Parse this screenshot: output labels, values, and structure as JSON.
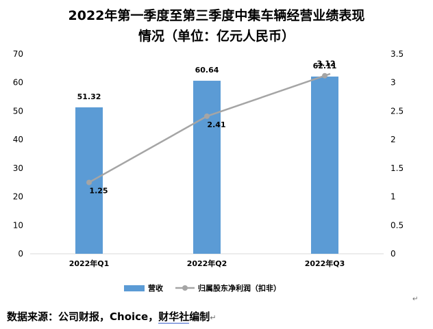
{
  "title_line_1": "2022年第一季度至第三季度中集车辆经营业绩表现",
  "title_line_2": "情况（单位：亿元人民币）",
  "source_text": "数据来源：公司财报，Choice，",
  "source_brand": "财华社",
  "source_suffix": "编制",
  "para_mark": "↵",
  "chart_data": {
    "type": "bar+line",
    "title": "2022年第一季度至第三季度中集车辆经营业绩表现情况（单位：亿元人民币）",
    "categories": [
      "2022年Q1",
      "2022年Q2",
      "2022年Q3"
    ],
    "left_axis": {
      "min": 0,
      "max": 70,
      "step": 10,
      "ticks": [
        "0",
        "10",
        "20",
        "30",
        "40",
        "50",
        "60",
        "70"
      ]
    },
    "right_axis": {
      "min": 0,
      "max": 3.5,
      "step": 0.5,
      "ticks": [
        "0",
        "0.5",
        "1",
        "1.5",
        "2",
        "2.5",
        "3",
        "3.5"
      ]
    },
    "series": [
      {
        "name": "营收",
        "kind": "bar",
        "axis": "left",
        "color": "#5b9bd5",
        "values": [
          51.32,
          60.64,
          62.11
        ],
        "labels": [
          "51.32",
          "60.64",
          "62.11"
        ]
      },
      {
        "name": "归属股东净利润（扣非）",
        "kind": "line",
        "axis": "right",
        "color": "#a5a5a5",
        "values": [
          1.25,
          2.41,
          3.12
        ],
        "labels": [
          "1.25",
          "2.41",
          "3.12"
        ]
      }
    ],
    "legend_position": "bottom",
    "gridlines": false
  }
}
